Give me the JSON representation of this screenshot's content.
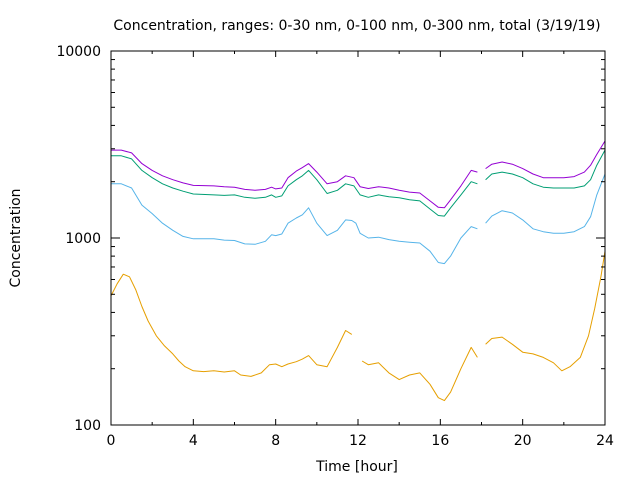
{
  "chart_data": {
    "type": "line",
    "title": "Concentration, ranges: 0-30 nm, 0-100 nm, 0-300 nm, total (3/19/19)",
    "xlabel": "Time [hour]",
    "ylabel": "Concentration",
    "xlim": [
      0,
      24
    ],
    "ylim": [
      100,
      10000
    ],
    "yscale": "log",
    "grid": false,
    "x_ticks": [
      0,
      4,
      8,
      12,
      16,
      20,
      24
    ],
    "x_tick_labels": [
      "0",
      "4",
      "8",
      "12",
      "16",
      "20",
      "24"
    ],
    "y_ticks": [
      100,
      1000,
      10000
    ],
    "y_tick_labels": [
      "100",
      "1000",
      "10000"
    ],
    "colors": {
      "0-30 nm": "#e69f00",
      "0-100 nm": "#56b4e9",
      "0-300 nm": "#009e73",
      "total": "#9400d3"
    },
    "series": [
      {
        "color": "#e69f00",
        "points": [
          [
            0,
            490
          ],
          [
            0.3,
            570
          ],
          [
            0.6,
            640
          ],
          [
            0.9,
            620
          ],
          [
            1.2,
            530
          ],
          [
            1.5,
            430
          ],
          [
            1.8,
            360
          ],
          [
            2.2,
            300
          ],
          [
            2.6,
            265
          ],
          [
            3.0,
            240
          ],
          [
            3.3,
            220
          ],
          [
            3.6,
            205
          ],
          [
            4.0,
            195
          ],
          [
            4.5,
            193
          ],
          [
            5.0,
            195
          ],
          [
            5.5,
            192
          ],
          [
            6.0,
            195
          ],
          [
            6.3,
            185
          ],
          [
            6.8,
            182
          ],
          [
            7.3,
            190
          ],
          [
            7.7,
            210
          ],
          [
            8.0,
            212
          ],
          [
            8.3,
            205
          ],
          [
            8.6,
            212
          ],
          [
            9.0,
            218
          ],
          [
            9.3,
            225
          ],
          [
            9.6,
            235
          ],
          [
            10.0,
            210
          ],
          [
            10.5,
            205
          ],
          [
            11.0,
            260
          ],
          [
            11.4,
            320
          ],
          [
            11.7,
            305
          ],
          [
            12.0,
            null
          ],
          [
            12.2,
            220
          ],
          [
            12.5,
            210
          ],
          [
            13.0,
            215
          ],
          [
            13.5,
            190
          ],
          [
            14.0,
            175
          ],
          [
            14.5,
            185
          ],
          [
            15.0,
            190
          ],
          [
            15.5,
            165
          ],
          [
            15.9,
            140
          ],
          [
            16.2,
            135
          ],
          [
            16.5,
            150
          ],
          [
            17.0,
            200
          ],
          [
            17.5,
            260
          ],
          [
            17.8,
            230
          ],
          [
            18.0,
            null
          ],
          [
            18.2,
            270
          ],
          [
            18.5,
            290
          ],
          [
            19.0,
            295
          ],
          [
            19.5,
            270
          ],
          [
            20.0,
            245
          ],
          [
            20.5,
            240
          ],
          [
            21.0,
            230
          ],
          [
            21.5,
            215
          ],
          [
            21.9,
            195
          ],
          [
            22.3,
            205
          ],
          [
            22.8,
            230
          ],
          [
            23.2,
            300
          ],
          [
            23.5,
            420
          ],
          [
            23.8,
            620
          ],
          [
            24.0,
            850
          ]
        ]
      },
      {
        "color": "#56b4e9",
        "points": [
          [
            0,
            1950
          ],
          [
            0.5,
            1950
          ],
          [
            1.0,
            1850
          ],
          [
            1.5,
            1500
          ],
          [
            2.0,
            1350
          ],
          [
            2.5,
            1200
          ],
          [
            3.0,
            1100
          ],
          [
            3.5,
            1020
          ],
          [
            4.0,
            990
          ],
          [
            4.5,
            990
          ],
          [
            5.0,
            990
          ],
          [
            5.5,
            975
          ],
          [
            6.0,
            970
          ],
          [
            6.5,
            930
          ],
          [
            7.0,
            925
          ],
          [
            7.5,
            960
          ],
          [
            7.8,
            1040
          ],
          [
            8.0,
            1030
          ],
          [
            8.3,
            1050
          ],
          [
            8.6,
            1200
          ],
          [
            9.0,
            1280
          ],
          [
            9.3,
            1330
          ],
          [
            9.6,
            1450
          ],
          [
            10.0,
            1200
          ],
          [
            10.5,
            1030
          ],
          [
            11.0,
            1100
          ],
          [
            11.4,
            1250
          ],
          [
            11.7,
            1240
          ],
          [
            11.9,
            1200
          ],
          [
            12.1,
            1060
          ],
          [
            12.5,
            1000
          ],
          [
            13.0,
            1010
          ],
          [
            13.5,
            980
          ],
          [
            14.0,
            960
          ],
          [
            14.5,
            950
          ],
          [
            15.0,
            940
          ],
          [
            15.5,
            850
          ],
          [
            15.9,
            740
          ],
          [
            16.2,
            730
          ],
          [
            16.5,
            800
          ],
          [
            17.0,
            1000
          ],
          [
            17.5,
            1150
          ],
          [
            17.8,
            1120
          ],
          [
            18.0,
            null
          ],
          [
            18.2,
            1200
          ],
          [
            18.5,
            1310
          ],
          [
            19.0,
            1400
          ],
          [
            19.5,
            1360
          ],
          [
            20.0,
            1250
          ],
          [
            20.5,
            1120
          ],
          [
            21.0,
            1080
          ],
          [
            21.5,
            1060
          ],
          [
            22.0,
            1060
          ],
          [
            22.5,
            1080
          ],
          [
            23.0,
            1150
          ],
          [
            23.3,
            1300
          ],
          [
            23.6,
            1700
          ],
          [
            24.0,
            2200
          ]
        ]
      },
      {
        "color": "#009e73",
        "points": [
          [
            0,
            2750
          ],
          [
            0.5,
            2750
          ],
          [
            1.0,
            2650
          ],
          [
            1.5,
            2300
          ],
          [
            2.0,
            2100
          ],
          [
            2.5,
            1950
          ],
          [
            3.0,
            1850
          ],
          [
            3.5,
            1780
          ],
          [
            4.0,
            1720
          ],
          [
            5.0,
            1700
          ],
          [
            5.5,
            1690
          ],
          [
            6.0,
            1700
          ],
          [
            6.5,
            1650
          ],
          [
            7.0,
            1630
          ],
          [
            7.5,
            1650
          ],
          [
            7.8,
            1700
          ],
          [
            8.0,
            1650
          ],
          [
            8.3,
            1680
          ],
          [
            8.6,
            1900
          ],
          [
            9.0,
            2050
          ],
          [
            9.3,
            2150
          ],
          [
            9.6,
            2300
          ],
          [
            10.0,
            2050
          ],
          [
            10.5,
            1730
          ],
          [
            11.0,
            1800
          ],
          [
            11.4,
            1950
          ],
          [
            11.8,
            1900
          ],
          [
            12.1,
            1700
          ],
          [
            12.5,
            1650
          ],
          [
            13.0,
            1700
          ],
          [
            13.5,
            1660
          ],
          [
            14.0,
            1640
          ],
          [
            14.5,
            1600
          ],
          [
            15.0,
            1580
          ],
          [
            15.5,
            1430
          ],
          [
            15.9,
            1320
          ],
          [
            16.2,
            1310
          ],
          [
            16.5,
            1450
          ],
          [
            17.0,
            1700
          ],
          [
            17.5,
            2000
          ],
          [
            17.8,
            1950
          ],
          [
            18.0,
            null
          ],
          [
            18.2,
            2050
          ],
          [
            18.5,
            2200
          ],
          [
            19.0,
            2250
          ],
          [
            19.5,
            2200
          ],
          [
            20.0,
            2100
          ],
          [
            20.5,
            1950
          ],
          [
            21.0,
            1870
          ],
          [
            21.5,
            1850
          ],
          [
            22.0,
            1850
          ],
          [
            22.5,
            1850
          ],
          [
            23.0,
            1900
          ],
          [
            23.3,
            2050
          ],
          [
            23.6,
            2450
          ],
          [
            24.0,
            2950
          ]
        ]
      },
      {
        "color": "#9400d3",
        "points": [
          [
            0,
            2950
          ],
          [
            0.5,
            2950
          ],
          [
            1.0,
            2850
          ],
          [
            1.5,
            2500
          ],
          [
            2.0,
            2300
          ],
          [
            2.5,
            2150
          ],
          [
            3.0,
            2050
          ],
          [
            3.5,
            1970
          ],
          [
            4.0,
            1910
          ],
          [
            5.0,
            1900
          ],
          [
            5.5,
            1880
          ],
          [
            6.0,
            1870
          ],
          [
            6.5,
            1820
          ],
          [
            7.0,
            1800
          ],
          [
            7.5,
            1820
          ],
          [
            7.8,
            1870
          ],
          [
            8.0,
            1830
          ],
          [
            8.3,
            1850
          ],
          [
            8.6,
            2100
          ],
          [
            9.0,
            2280
          ],
          [
            9.3,
            2380
          ],
          [
            9.6,
            2500
          ],
          [
            10.0,
            2250
          ],
          [
            10.5,
            1950
          ],
          [
            11.0,
            2000
          ],
          [
            11.4,
            2150
          ],
          [
            11.8,
            2100
          ],
          [
            12.1,
            1880
          ],
          [
            12.5,
            1840
          ],
          [
            13.0,
            1880
          ],
          [
            13.5,
            1850
          ],
          [
            14.0,
            1800
          ],
          [
            14.5,
            1760
          ],
          [
            15.0,
            1740
          ],
          [
            15.5,
            1580
          ],
          [
            15.9,
            1460
          ],
          [
            16.2,
            1450
          ],
          [
            16.5,
            1600
          ],
          [
            17.0,
            1900
          ],
          [
            17.5,
            2300
          ],
          [
            17.8,
            2250
          ],
          [
            18.0,
            null
          ],
          [
            18.2,
            2350
          ],
          [
            18.5,
            2480
          ],
          [
            19.0,
            2550
          ],
          [
            19.5,
            2480
          ],
          [
            20.0,
            2350
          ],
          [
            20.5,
            2200
          ],
          [
            21.0,
            2100
          ],
          [
            21.5,
            2100
          ],
          [
            22.0,
            2100
          ],
          [
            22.5,
            2130
          ],
          [
            23.0,
            2250
          ],
          [
            23.3,
            2450
          ],
          [
            23.6,
            2800
          ],
          [
            24.0,
            3300
          ]
        ]
      }
    ]
  }
}
